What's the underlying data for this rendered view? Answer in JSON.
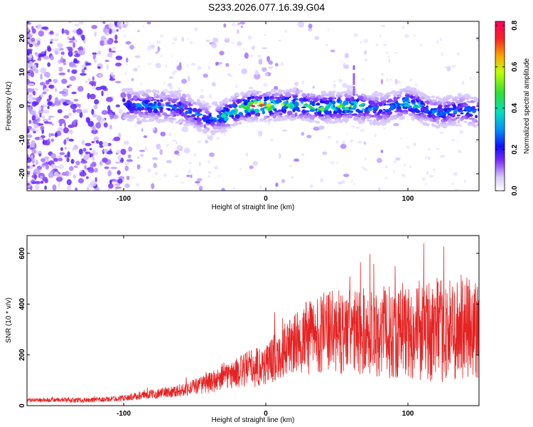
{
  "title": "S233.2026.077.16.39.G04",
  "colors": {
    "snr_line": "#e52222",
    "axis": "#000000",
    "background": "#ffffff"
  },
  "chart_data": [
    {
      "type": "heatmap",
      "name": "spectrogram",
      "xlabel": "Height of straight line (km)",
      "ylabel": "Frequency (Hz)",
      "xlim": [
        -168,
        150
      ],
      "ylim": [
        -25,
        25
      ],
      "xticks": [
        -100,
        0,
        100
      ],
      "xtick_labels": [
        "-100",
        "0",
        "100"
      ],
      "yticks": [
        -20,
        -10,
        0,
        10,
        20
      ],
      "ytick_labels": [
        "-20",
        "-10",
        "0",
        "10",
        "20"
      ],
      "grid": false,
      "description_of_data": "Normalized spectral amplitude concentrated in a band near 0 Hz from about -100 km to 150 km; diffuse noise below -100 km; peak values near 0 to 60 km.",
      "band_center_hz": [
        [
          -100,
          0.5
        ],
        [
          -80,
          0
        ],
        [
          -60,
          -0.5
        ],
        [
          -40,
          -4
        ],
        [
          -30,
          -3
        ],
        [
          -20,
          -1
        ],
        [
          -10,
          0
        ],
        [
          0,
          0
        ],
        [
          20,
          0.5
        ],
        [
          40,
          -0.5
        ],
        [
          60,
          0
        ],
        [
          80,
          -1
        ],
        [
          100,
          1
        ],
        [
          120,
          -2
        ],
        [
          140,
          -1
        ],
        [
          150,
          -2
        ]
      ],
      "colorbar": {
        "label": "Normalized spectral amplitude",
        "range": [
          0.0,
          0.82
        ],
        "ticks": [
          0.0,
          0.2,
          0.4,
          0.6,
          0.8
        ],
        "tick_labels": [
          "0.0",
          "0.2",
          "0.4",
          "0.6",
          "0.8"
        ]
      }
    },
    {
      "type": "line",
      "name": "snr",
      "xlabel": "Height of straight line (km)",
      "ylabel": "SNR (10 * v/v)",
      "xlim": [
        -168,
        150
      ],
      "ylim": [
        0,
        670
      ],
      "xticks": [
        -100,
        0,
        100
      ],
      "xtick_labels": [
        "-100",
        "0",
        "100"
      ],
      "yticks": [
        0,
        200,
        400,
        600
      ],
      "ytick_labels": [
        "0",
        "200",
        "400",
        "600"
      ],
      "grid": false,
      "envelope": {
        "x": [
          -168,
          -120,
          -100,
          -80,
          -60,
          -40,
          -20,
          -10,
          -5,
          0,
          10,
          20,
          30,
          40,
          60,
          80,
          100,
          120,
          140,
          150
        ],
        "y_mean": [
          22,
          22,
          30,
          45,
          60,
          90,
          130,
          150,
          155,
          160,
          210,
          240,
          270,
          290,
          290,
          290,
          290,
          290,
          300,
          300
        ],
        "y_amplitude": [
          8,
          10,
          12,
          18,
          25,
          40,
          60,
          80,
          80,
          90,
          100,
          120,
          150,
          160,
          170,
          180,
          190,
          200,
          210,
          220
        ]
      }
    }
  ]
}
